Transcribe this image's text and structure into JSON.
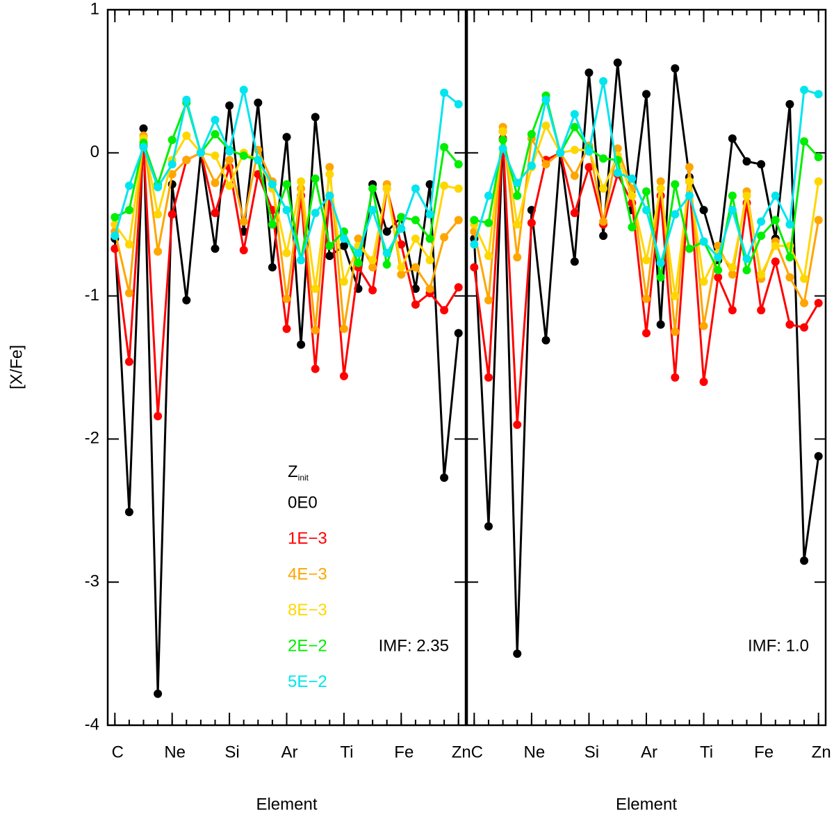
{
  "chart_data": [
    {
      "type": "line",
      "x_label": "Element",
      "y_label": "[X/Fe]",
      "annotation": "IMF: 2.35",
      "legend": true,
      "legend_title": "Z",
      "legend_title_subscript": "init",
      "x": [
        6,
        7,
        8,
        9,
        10,
        11,
        12,
        13,
        14,
        15,
        16,
        17,
        18,
        19,
        20,
        21,
        22,
        23,
        24,
        25,
        26,
        27,
        28,
        29,
        30
      ],
      "xlim": [
        5.5,
        30.5
      ],
      "xticks": [
        {
          "value": 6,
          "label": "C"
        },
        {
          "value": 10,
          "label": "Ne"
        },
        {
          "value": 14,
          "label": "Si"
        },
        {
          "value": 18,
          "label": "Ar"
        },
        {
          "value": 22,
          "label": "Ti"
        },
        {
          "value": 26,
          "label": "Fe"
        },
        {
          "value": 30,
          "label": "Zn"
        }
      ],
      "ylim": [
        -4,
        1
      ],
      "yticks": [
        1,
        0,
        -1,
        -2,
        -3,
        -4
      ],
      "series": [
        {
          "name": "0E0",
          "color": "#000000",
          "values": [
            -0.6,
            -2.51,
            0.17,
            -3.78,
            -0.22,
            -1.03,
            0.0,
            -0.67,
            0.33,
            -0.55,
            0.35,
            -0.8,
            0.11,
            -1.34,
            0.25,
            -0.72,
            -0.65,
            -0.95,
            -0.22,
            -0.55,
            -0.45,
            -0.95,
            -0.22,
            -2.27,
            -1.26
          ]
        },
        {
          "name": "1E−3",
          "color": "#ff0000",
          "values": [
            -0.67,
            -1.46,
            0.05,
            -1.84,
            -0.43,
            -0.05,
            0.0,
            -0.42,
            -0.1,
            -0.68,
            -0.15,
            -0.4,
            -1.23,
            -0.3,
            -1.51,
            -0.3,
            -1.56,
            -0.8,
            -0.96,
            -0.25,
            -0.64,
            -1.06,
            -0.98,
            -1.1,
            -0.94
          ]
        },
        {
          "name": "4E−3",
          "color": "#ffa500",
          "values": [
            -0.55,
            -0.98,
            0.12,
            -0.69,
            -0.15,
            -0.05,
            0.0,
            -0.21,
            -0.05,
            -0.48,
            0.02,
            -0.2,
            -1.02,
            -0.25,
            -1.24,
            -0.1,
            -1.23,
            -0.6,
            -0.8,
            -0.22,
            -0.85,
            -0.8,
            -0.95,
            -0.59,
            -0.47
          ]
        },
        {
          "name": "8E−3",
          "color": "#ffd700",
          "values": [
            -0.5,
            -0.64,
            0.1,
            -0.43,
            -0.05,
            0.12,
            0.0,
            -0.02,
            -0.23,
            0.0,
            -0.05,
            -0.25,
            -0.7,
            -0.2,
            -0.95,
            -0.15,
            -0.9,
            -0.65,
            -0.75,
            -0.25,
            -0.8,
            -0.6,
            -0.75,
            -0.23,
            -0.25
          ]
        },
        {
          "name": "2E−2",
          "color": "#00ee00",
          "values": [
            -0.45,
            -0.4,
            0.07,
            -0.22,
            0.09,
            0.35,
            0.0,
            0.13,
            0.02,
            -0.02,
            -0.05,
            -0.5,
            -0.22,
            -0.75,
            -0.18,
            -0.65,
            -0.55,
            -0.77,
            -0.25,
            -0.78,
            -0.45,
            -0.47,
            -0.6,
            0.04,
            -0.08
          ]
        },
        {
          "name": "5E−2",
          "color": "#00e5ee",
          "values": [
            -0.58,
            -0.23,
            0.04,
            -0.24,
            -0.08,
            0.37,
            0.0,
            0.23,
            0.01,
            0.44,
            -0.05,
            -0.22,
            -0.4,
            -0.75,
            -0.42,
            -0.3,
            -0.6,
            -0.7,
            -0.4,
            -0.7,
            -0.53,
            -0.25,
            -0.43,
            0.42,
            0.34
          ]
        }
      ]
    },
    {
      "type": "line",
      "x_label": "Element",
      "annotation": "IMF: 1.0",
      "x": [
        6,
        7,
        8,
        9,
        10,
        11,
        12,
        13,
        14,
        15,
        16,
        17,
        18,
        19,
        20,
        21,
        22,
        23,
        24,
        25,
        26,
        27,
        28,
        29,
        30
      ],
      "xlim": [
        5.5,
        30.5
      ],
      "xticks": [
        {
          "value": 6,
          "label": "C"
        },
        {
          "value": 10,
          "label": "Ne"
        },
        {
          "value": 14,
          "label": "Si"
        },
        {
          "value": 18,
          "label": "Ar"
        },
        {
          "value": 22,
          "label": "Ti"
        },
        {
          "value": 26,
          "label": "Fe"
        },
        {
          "value": 30,
          "label": "Zn"
        }
      ],
      "ylim": [
        -4,
        1
      ],
      "series": [
        {
          "name": "0E0",
          "color": "#000000",
          "values": [
            -0.6,
            -2.61,
            0.15,
            -3.5,
            -0.4,
            -1.31,
            0.0,
            -0.76,
            0.56,
            -0.58,
            0.63,
            -0.4,
            0.41,
            -1.2,
            0.59,
            -0.17,
            -0.4,
            -0.75,
            0.1,
            -0.06,
            -0.08,
            -0.6,
            0.34,
            -2.85,
            -2.12
          ]
        },
        {
          "name": "1E−3",
          "color": "#ff0000",
          "values": [
            -0.8,
            -1.57,
            0.1,
            -1.9,
            -0.49,
            -0.05,
            0.0,
            -0.42,
            -0.1,
            -0.5,
            -0.15,
            -0.35,
            -1.26,
            -0.3,
            -1.57,
            -0.2,
            -1.6,
            -0.87,
            -1.1,
            -0.35,
            -1.1,
            -0.76,
            -1.2,
            -1.22,
            -1.05
          ]
        },
        {
          "name": "4E−3",
          "color": "#ffa500",
          "values": [
            -0.55,
            -1.03,
            0.18,
            -0.73,
            0.1,
            -0.08,
            0.0,
            -0.16,
            0.05,
            -0.48,
            0.03,
            -0.25,
            -1.02,
            -0.2,
            -1.25,
            -0.1,
            -1.21,
            -0.65,
            -0.85,
            -0.27,
            -0.88,
            -0.62,
            -0.87,
            -1.05,
            -0.47
          ]
        },
        {
          "name": "8E−3",
          "color": "#ffd700",
          "values": [
            -0.5,
            -0.72,
            0.15,
            -0.5,
            -0.1,
            0.19,
            0.0,
            0.02,
            0.02,
            -0.25,
            -0.02,
            -0.3,
            -0.75,
            -0.25,
            -1.0,
            -0.2,
            -0.9,
            -0.7,
            -0.8,
            -0.3,
            -0.85,
            -0.65,
            -0.65,
            -0.88,
            -0.2
          ]
        },
        {
          "name": "2E−2",
          "color": "#00ee00",
          "values": [
            -0.47,
            -0.49,
            0.09,
            -0.3,
            0.13,
            0.4,
            0.0,
            0.18,
            0.03,
            -0.04,
            -0.05,
            -0.52,
            -0.27,
            -0.87,
            -0.22,
            -0.67,
            -0.62,
            -0.82,
            -0.3,
            -0.82,
            -0.58,
            -0.47,
            -0.73,
            0.08,
            -0.03
          ]
        },
        {
          "name": "5E−2",
          "color": "#00e5ee",
          "values": [
            -0.64,
            -0.3,
            0.03,
            -0.21,
            -0.09,
            0.37,
            0.0,
            0.27,
            0.01,
            0.5,
            -0.14,
            -0.18,
            -0.4,
            -0.77,
            -0.43,
            -0.3,
            -0.62,
            -0.73,
            -0.4,
            -0.74,
            -0.48,
            -0.3,
            -0.5,
            0.44,
            0.41
          ]
        }
      ]
    }
  ]
}
